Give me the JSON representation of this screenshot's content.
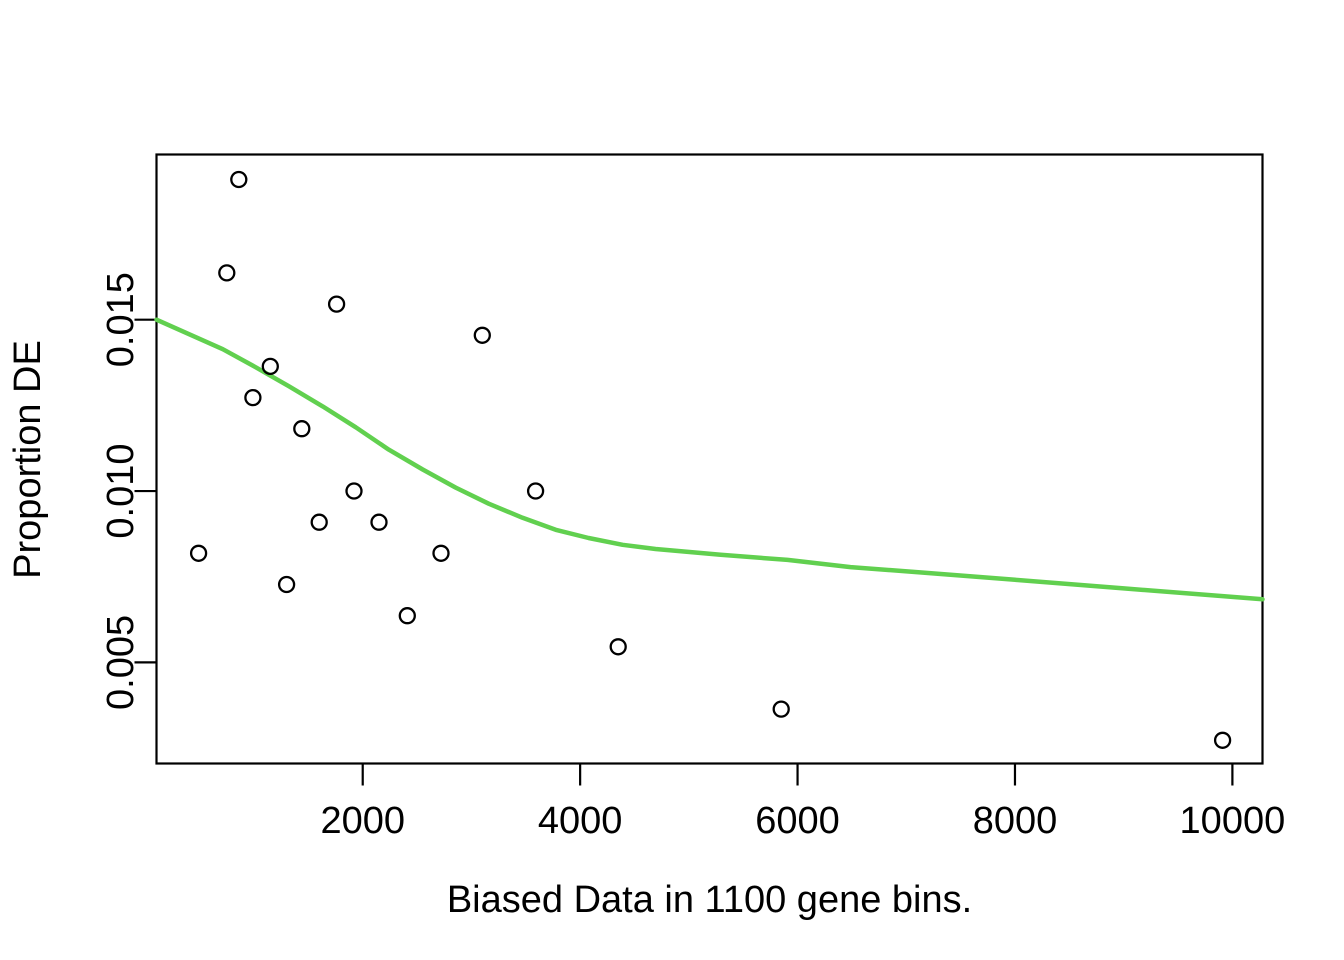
{
  "figure": {
    "kind": "r-base-scatterplot",
    "background": "#FFFFFF"
  },
  "colors": {
    "foreground": "#000000",
    "smooth_line": "#61D04F",
    "point_stroke": "#000000",
    "background": "#FFFFFF"
  },
  "chart_data": {
    "type": "scatter",
    "title": "",
    "xlabel": "Biased Data in 1100 gene bins.",
    "ylabel": "Proportion DE",
    "xlim": [
      103,
      10277
    ],
    "ylim": [
      0.00205,
      0.01982
    ],
    "grid": false,
    "legend_position": "none",
    "x_ticks": {
      "values": [
        2000,
        4000,
        6000,
        8000,
        10000
      ],
      "labels": [
        "2000",
        "4000",
        "6000",
        "8000",
        "10000"
      ]
    },
    "y_ticks": {
      "values": [
        0.005,
        0.01,
        0.015
      ],
      "labels": [
        "0.005",
        "0.010",
        "0.015"
      ]
    },
    "series": [
      {
        "name": "proportion-de-per-bin",
        "type": "scatter",
        "marker": "open-circle",
        "color": "#000000",
        "points": [
          [
            860,
            0.019091
          ],
          [
            750,
            0.016364
          ],
          [
            1760,
            0.015455
          ],
          [
            3100,
            0.014545
          ],
          [
            1150,
            0.013636
          ],
          [
            990,
            0.012727
          ],
          [
            1440,
            0.011818
          ],
          [
            1920,
            0.01
          ],
          [
            3590,
            0.01
          ],
          [
            1600,
            0.009091
          ],
          [
            2150,
            0.009091
          ],
          [
            490,
            0.008182
          ],
          [
            2720,
            0.008182
          ],
          [
            1300,
            0.007273
          ],
          [
            2410,
            0.006364
          ],
          [
            4350,
            0.005455
          ],
          [
            5850,
            0.003636
          ],
          [
            9910,
            0.002727
          ]
        ]
      },
      {
        "name": "lowess-smooth",
        "type": "line",
        "color": "#61D04F",
        "points": [
          [
            103,
            0.015
          ],
          [
            400,
            0.01458
          ],
          [
            713,
            0.01414
          ],
          [
            1016,
            0.01361
          ],
          [
            1320,
            0.01306
          ],
          [
            1632,
            0.01247
          ],
          [
            1936,
            0.01186
          ],
          [
            2239,
            0.01121
          ],
          [
            2552,
            0.01063
          ],
          [
            2855,
            0.0101
          ],
          [
            3159,
            0.00963
          ],
          [
            3471,
            0.00922
          ],
          [
            3775,
            0.00887
          ],
          [
            4078,
            0.00863
          ],
          [
            4391,
            0.00843
          ],
          [
            4694,
            0.00831
          ],
          [
            5292,
            0.00814
          ],
          [
            5908,
            0.00799
          ],
          [
            6487,
            0.00778
          ],
          [
            7067,
            0.00764
          ],
          [
            8000,
            0.00741
          ],
          [
            9000,
            0.00716
          ],
          [
            10277,
            0.00684
          ]
        ]
      }
    ]
  }
}
